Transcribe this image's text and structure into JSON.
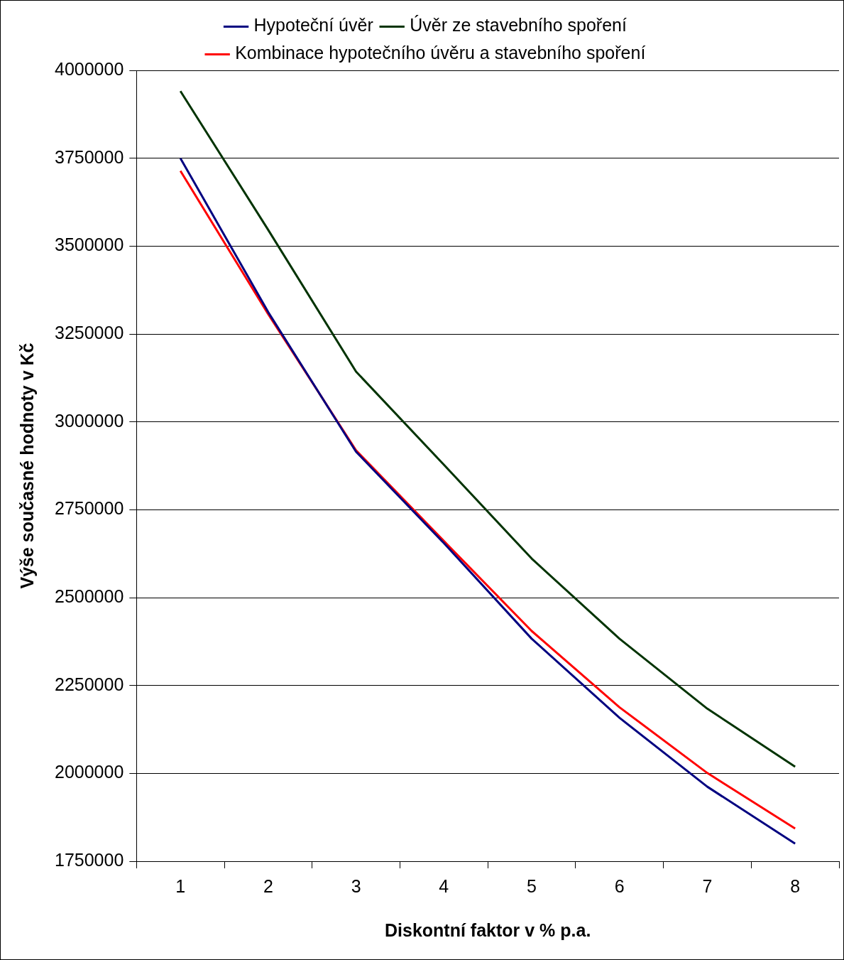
{
  "chart_data": {
    "type": "line",
    "xlabel": "Diskontní faktor v % p.a.",
    "ylabel": "Výše současné hodnoty v Kč",
    "categories": [
      "1",
      "2",
      "3",
      "4",
      "5",
      "6",
      "7",
      "8"
    ],
    "series": [
      {
        "name": "Hypoteční úvěr",
        "color": "#000080",
        "values": [
          3750000,
          3312000,
          2915000,
          2655000,
          2383000,
          2158000,
          1962000,
          1800000
        ]
      },
      {
        "name": "Úvěr ze stavebního spoření",
        "color": "#003300",
        "values": [
          3941000,
          3546000,
          3143000,
          2878000,
          2611000,
          2383000,
          2184000,
          2019000
        ]
      },
      {
        "name": "Kombinace hypotečního úvěru a stavebního spoření",
        "color": "#ff0000",
        "values": [
          3714000,
          3306000,
          2919000,
          2661000,
          2405000,
          2188000,
          2001000,
          1843000
        ]
      }
    ],
    "ylim": [
      1750000,
      4000000
    ],
    "yticks": [
      1750000,
      2000000,
      2250000,
      2500000,
      2750000,
      3000000,
      3250000,
      3500000,
      3750000,
      4000000
    ],
    "grid": "y",
    "legend": "top",
    "line_style": "solid"
  }
}
